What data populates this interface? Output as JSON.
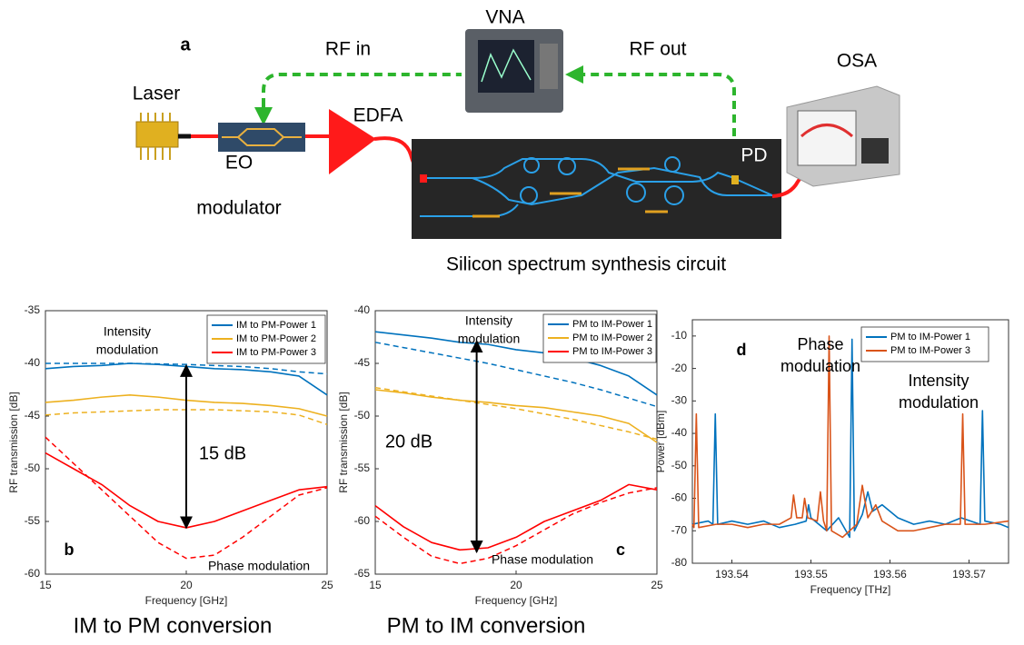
{
  "diagram": {
    "panel_label": "a",
    "vna": "VNA",
    "rf_in": "RF in",
    "rf_out": "RF out",
    "osa": "OSA",
    "laser": "Laser",
    "edfa": "EDFA",
    "eo_modulator": [
      "EO",
      "modulator"
    ],
    "pd": "PD",
    "caption": "Silicon spectrum synthesis circuit"
  },
  "chart_data": [
    {
      "type": "line",
      "panel_label": "b",
      "caption": "IM to PM conversion",
      "xlabel": "Frequency [GHz]",
      "ylabel": "RF transmission [dB]",
      "xlim": [
        15,
        25
      ],
      "xticks": [
        15,
        20,
        25
      ],
      "ylim": [
        -60,
        -35
      ],
      "yticks": [
        -60,
        -55,
        -50,
        -45,
        -40,
        -35
      ],
      "x": [
        15,
        16,
        17,
        18,
        19,
        20,
        21,
        22,
        23,
        24,
        25
      ],
      "series": [
        {
          "name": "IM to PM-Power 1",
          "color": "#0072bd",
          "values": [
            -40.5,
            -40.3,
            -40.2,
            -40,
            -40.1,
            -40.3,
            -40.5,
            -40.6,
            -40.8,
            -41.2,
            -43
          ]
        },
        {
          "name": "IM to PM-Power 2",
          "color": "#edb120",
          "values": [
            -43.7,
            -43.5,
            -43.2,
            -43,
            -43.2,
            -43.5,
            -43.7,
            -43.8,
            -44,
            -44.3,
            -45
          ]
        },
        {
          "name": "IM to PM-Power 3",
          "color": "#ff0000",
          "values": [
            -48.5,
            -50,
            -51.5,
            -53.5,
            -55,
            -55.6,
            -55,
            -54,
            -53,
            -52,
            -51.7
          ]
        }
      ],
      "fits": [
        {
          "color": "#0072bd",
          "line_style": "dashed",
          "values": [
            -40,
            -40,
            -40,
            -40,
            -40.05,
            -40.1,
            -40.2,
            -40.3,
            -40.5,
            -40.8,
            -41
          ]
        },
        {
          "color": "#edb120",
          "line_style": "dashed",
          "values": [
            -44.9,
            -44.7,
            -44.6,
            -44.5,
            -44.4,
            -44.4,
            -44.4,
            -44.5,
            -44.6,
            -44.9,
            -45.8
          ]
        },
        {
          "color": "#ff0000",
          "line_style": "dashed",
          "values": [
            -47,
            -49.5,
            -52,
            -54.5,
            -57,
            -58.5,
            -58.2,
            -56.5,
            -54.5,
            -52.5,
            -51.8
          ]
        }
      ],
      "arrow": {
        "x": 20,
        "y": [
          -40.2,
          -55.6
        ]
      },
      "annotations": {
        "intensity": [
          "Intensity",
          "modulation"
        ],
        "gap": "15 dB",
        "phase": "Phase modulation"
      }
    },
    {
      "type": "line",
      "panel_label": "c",
      "caption": "PM to IM conversion",
      "xlabel": "Frequency [GHz]",
      "ylabel": "RF transmission [dB]",
      "xlim": [
        15,
        25
      ],
      "xticks": [
        15,
        20,
        25
      ],
      "ylim": [
        -65,
        -40
      ],
      "yticks": [
        -65,
        -60,
        -55,
        -50,
        -45,
        -40
      ],
      "x": [
        15,
        16,
        17,
        18,
        19,
        20,
        21,
        22,
        23,
        24,
        25
      ],
      "series": [
        {
          "name": "PM to IM-Power 1",
          "color": "#0072bd",
          "values": [
            -42,
            -42.3,
            -42.6,
            -43,
            -43.2,
            -43.7,
            -44,
            -44.5,
            -45.2,
            -46.2,
            -48
          ]
        },
        {
          "name": "PM to IM-Power 2",
          "color": "#edb120",
          "values": [
            -47.5,
            -47.8,
            -48.2,
            -48.5,
            -48.7,
            -49,
            -49.2,
            -49.6,
            -50,
            -50.7,
            -52.5
          ]
        },
        {
          "name": "PM to IM-Power 3",
          "color": "#ff0000",
          "values": [
            -58.5,
            -60.5,
            -62,
            -62.7,
            -62.5,
            -61.5,
            -60,
            -59,
            -58,
            -56.5,
            -57
          ]
        }
      ],
      "fits": [
        {
          "color": "#0072bd",
          "line_style": "dashed",
          "values": [
            -43,
            -43.5,
            -44,
            -44.5,
            -45,
            -45.6,
            -46.2,
            -46.8,
            -47.5,
            -48.3,
            -49.1
          ]
        },
        {
          "color": "#edb120",
          "line_style": "dashed",
          "values": [
            -47.3,
            -47.7,
            -48.1,
            -48.5,
            -48.9,
            -49.3,
            -49.8,
            -50.3,
            -50.9,
            -51.5,
            -52.2
          ]
        },
        {
          "color": "#ff0000",
          "line_style": "dashed",
          "values": [
            -59.5,
            -61.5,
            -63.3,
            -64,
            -63.5,
            -62.3,
            -60.8,
            -59.3,
            -58.2,
            -57.3,
            -56.8
          ]
        }
      ],
      "arrow": {
        "x": 18.6,
        "y": [
          -42.9,
          -62.9
        ]
      },
      "annotations": {
        "intensity": [
          "Intensity",
          "modulation"
        ],
        "gap": "20 dB",
        "phase": "Phase modulation"
      }
    },
    {
      "type": "line",
      "panel_label": "d",
      "xlabel": "Frequency [THz]",
      "ylabel": "Power [dBm]",
      "xlim": [
        193.535,
        193.575
      ],
      "xticks": [
        193.54,
        193.55,
        193.56,
        193.57
      ],
      "ylim": [
        -80,
        -5
      ],
      "yticks": [
        -80,
        -70,
        -60,
        -50,
        -40,
        -30,
        -20,
        -10
      ],
      "series": [
        {
          "name": "PM to IM-Power 1",
          "color": "#0072bd",
          "x": [
            193.535,
            193.537,
            193.5376,
            193.5379,
            193.5382,
            193.54,
            193.542,
            193.544,
            193.546,
            193.548,
            193.5494,
            193.5497,
            193.55,
            193.552,
            193.5535,
            193.5549,
            193.5552,
            193.5555,
            193.5565,
            193.5572,
            193.5578,
            193.559,
            193.561,
            193.563,
            193.565,
            193.567,
            193.569,
            193.5714,
            193.5717,
            193.572,
            193.574,
            193.575
          ],
          "values": [
            -68,
            -67,
            -68,
            -34,
            -68,
            -67,
            -68,
            -67,
            -69,
            -68,
            -67,
            -62,
            -66,
            -70,
            -66,
            -72,
            -11,
            -70,
            -65,
            -58,
            -64,
            -62,
            -66,
            -68,
            -67,
            -68,
            -66,
            -68,
            -33,
            -67,
            -68,
            -69
          ]
        },
        {
          "name": "PM to IM-Power 3",
          "color": "#d95319",
          "x": [
            193.535,
            193.5352,
            193.5355,
            193.5358,
            193.538,
            193.54,
            193.542,
            193.544,
            193.546,
            193.5475,
            193.5478,
            193.5482,
            193.5489,
            193.5492,
            193.5496,
            193.5508,
            193.5512,
            193.5516,
            193.552,
            193.5523,
            193.5526,
            193.554,
            193.5558,
            193.5565,
            193.5572,
            193.5582,
            193.559,
            193.561,
            193.563,
            193.565,
            193.567,
            193.5689,
            193.5692,
            193.5695,
            193.572,
            193.575
          ],
          "values": [
            -68,
            -69,
            -34,
            -69,
            -68,
            -68,
            -69,
            -68,
            -68,
            -66,
            -59,
            -66,
            -66,
            -60,
            -66,
            -67,
            -58,
            -67,
            -70,
            -10,
            -70,
            -72,
            -68,
            -56,
            -66,
            -62,
            -67,
            -70,
            -70,
            -69,
            -68,
            -68,
            -34,
            -68,
            -68,
            -67
          ]
        }
      ],
      "annotations": {
        "phase": [
          "Phase",
          "modulation"
        ],
        "intensity": [
          "Intensity",
          "modulation"
        ]
      }
    }
  ]
}
